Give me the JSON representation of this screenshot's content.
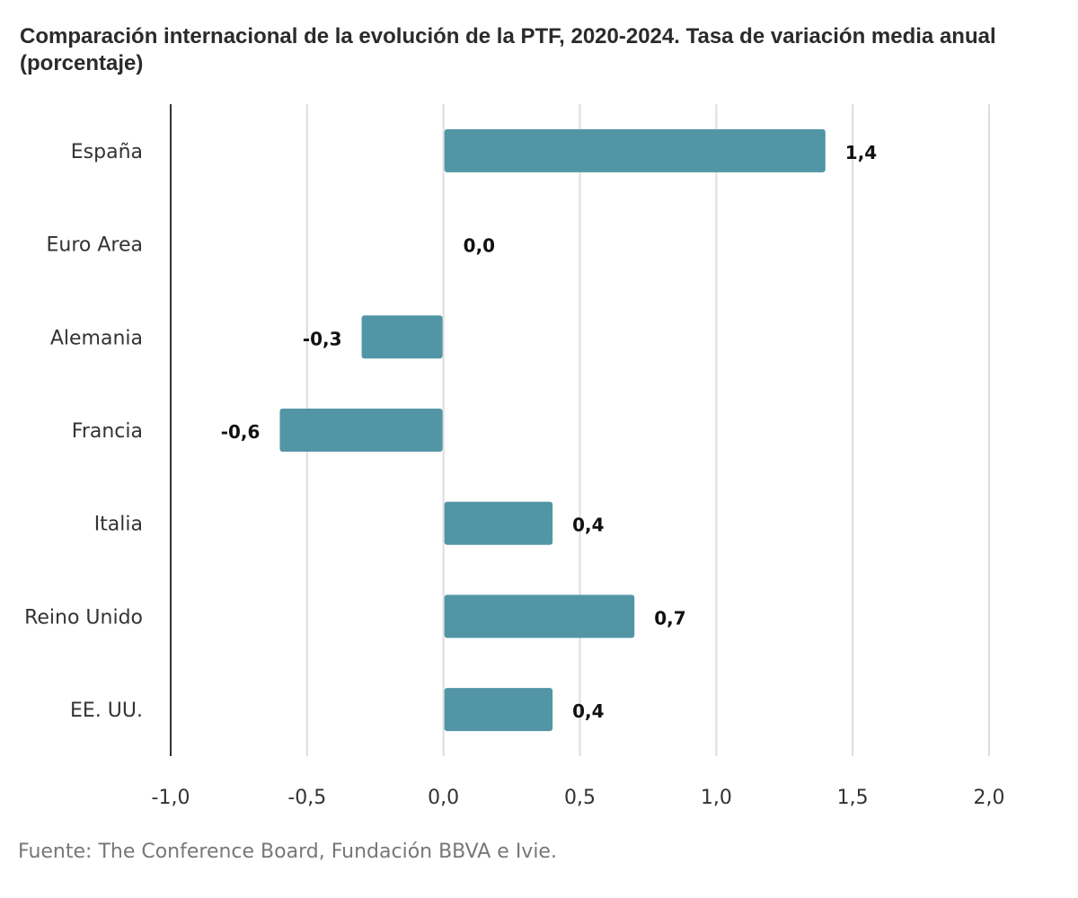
{
  "title": "Comparación internacional de la evolución de la PTF, 2020-2024. Tasa de variación media anual (porcentaje)",
  "source": "Fuente: The Conference Board, Fundación BBVA e Ivie.",
  "colors": {
    "bar": "#5296a5",
    "grid": "#dddddd",
    "axis": "#333333"
  },
  "chart_data": {
    "type": "bar",
    "orientation": "horizontal",
    "title": "Comparación internacional de la evolución de la PTF, 2020-2024. Tasa de variación media anual (porcentaje)",
    "categories": [
      "España",
      "Euro Area",
      "Alemania",
      "Francia",
      "Italia",
      "Reino Unido",
      "EE. UU."
    ],
    "values": [
      1.4,
      0.0,
      -0.3,
      -0.6,
      0.4,
      0.7,
      0.4
    ],
    "value_labels": [
      "1,4",
      "0,0",
      "-0,3",
      "-0,6",
      "0,4",
      "0,7",
      "0,4"
    ],
    "xlim": [
      -1.0,
      2.0
    ],
    "xticks": [
      -1.0,
      -0.5,
      0.0,
      0.5,
      1.0,
      1.5,
      2.0
    ],
    "xtick_labels": [
      "-1,0",
      "-0,5",
      "0,0",
      "0,5",
      "1,0",
      "1,5",
      "2,0"
    ],
    "grid": true,
    "legend": "none"
  }
}
